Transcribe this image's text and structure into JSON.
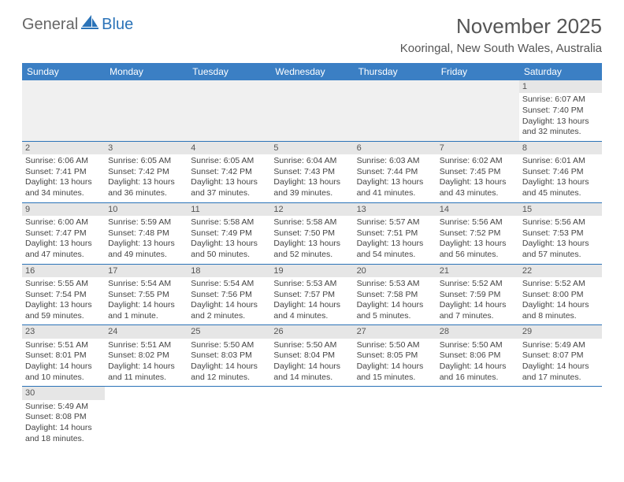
{
  "logo": {
    "general": "General",
    "blue": "Blue"
  },
  "title": "November 2025",
  "location": "Kooringal, New South Wales, Australia",
  "colors": {
    "header_bg": "#3b7fc4",
    "header_text": "#ffffff",
    "daynum_bg": "#e6e6e6",
    "cell_border": "#2b73b8",
    "logo_blue": "#2b73b8",
    "body_text": "#444444"
  },
  "weekdays": [
    "Sunday",
    "Monday",
    "Tuesday",
    "Wednesday",
    "Thursday",
    "Friday",
    "Saturday"
  ],
  "weeks": [
    [
      null,
      null,
      null,
      null,
      null,
      null,
      {
        "n": 1,
        "r": "6:07 AM",
        "s": "7:40 PM",
        "d": "13 hours and 32 minutes."
      }
    ],
    [
      {
        "n": 2,
        "r": "6:06 AM",
        "s": "7:41 PM",
        "d": "13 hours and 34 minutes."
      },
      {
        "n": 3,
        "r": "6:05 AM",
        "s": "7:42 PM",
        "d": "13 hours and 36 minutes."
      },
      {
        "n": 4,
        "r": "6:05 AM",
        "s": "7:42 PM",
        "d": "13 hours and 37 minutes."
      },
      {
        "n": 5,
        "r": "6:04 AM",
        "s": "7:43 PM",
        "d": "13 hours and 39 minutes."
      },
      {
        "n": 6,
        "r": "6:03 AM",
        "s": "7:44 PM",
        "d": "13 hours and 41 minutes."
      },
      {
        "n": 7,
        "r": "6:02 AM",
        "s": "7:45 PM",
        "d": "13 hours and 43 minutes."
      },
      {
        "n": 8,
        "r": "6:01 AM",
        "s": "7:46 PM",
        "d": "13 hours and 45 minutes."
      }
    ],
    [
      {
        "n": 9,
        "r": "6:00 AM",
        "s": "7:47 PM",
        "d": "13 hours and 47 minutes."
      },
      {
        "n": 10,
        "r": "5:59 AM",
        "s": "7:48 PM",
        "d": "13 hours and 49 minutes."
      },
      {
        "n": 11,
        "r": "5:58 AM",
        "s": "7:49 PM",
        "d": "13 hours and 50 minutes."
      },
      {
        "n": 12,
        "r": "5:58 AM",
        "s": "7:50 PM",
        "d": "13 hours and 52 minutes."
      },
      {
        "n": 13,
        "r": "5:57 AM",
        "s": "7:51 PM",
        "d": "13 hours and 54 minutes."
      },
      {
        "n": 14,
        "r": "5:56 AM",
        "s": "7:52 PM",
        "d": "13 hours and 56 minutes."
      },
      {
        "n": 15,
        "r": "5:56 AM",
        "s": "7:53 PM",
        "d": "13 hours and 57 minutes."
      }
    ],
    [
      {
        "n": 16,
        "r": "5:55 AM",
        "s": "7:54 PM",
        "d": "13 hours and 59 minutes."
      },
      {
        "n": 17,
        "r": "5:54 AM",
        "s": "7:55 PM",
        "d": "14 hours and 1 minute."
      },
      {
        "n": 18,
        "r": "5:54 AM",
        "s": "7:56 PM",
        "d": "14 hours and 2 minutes."
      },
      {
        "n": 19,
        "r": "5:53 AM",
        "s": "7:57 PM",
        "d": "14 hours and 4 minutes."
      },
      {
        "n": 20,
        "r": "5:53 AM",
        "s": "7:58 PM",
        "d": "14 hours and 5 minutes."
      },
      {
        "n": 21,
        "r": "5:52 AM",
        "s": "7:59 PM",
        "d": "14 hours and 7 minutes."
      },
      {
        "n": 22,
        "r": "5:52 AM",
        "s": "8:00 PM",
        "d": "14 hours and 8 minutes."
      }
    ],
    [
      {
        "n": 23,
        "r": "5:51 AM",
        "s": "8:01 PM",
        "d": "14 hours and 10 minutes."
      },
      {
        "n": 24,
        "r": "5:51 AM",
        "s": "8:02 PM",
        "d": "14 hours and 11 minutes."
      },
      {
        "n": 25,
        "r": "5:50 AM",
        "s": "8:03 PM",
        "d": "14 hours and 12 minutes."
      },
      {
        "n": 26,
        "r": "5:50 AM",
        "s": "8:04 PM",
        "d": "14 hours and 14 minutes."
      },
      {
        "n": 27,
        "r": "5:50 AM",
        "s": "8:05 PM",
        "d": "14 hours and 15 minutes."
      },
      {
        "n": 28,
        "r": "5:50 AM",
        "s": "8:06 PM",
        "d": "14 hours and 16 minutes."
      },
      {
        "n": 29,
        "r": "5:49 AM",
        "s": "8:07 PM",
        "d": "14 hours and 17 minutes."
      }
    ],
    [
      {
        "n": 30,
        "r": "5:49 AM",
        "s": "8:08 PM",
        "d": "14 hours and 18 minutes."
      },
      null,
      null,
      null,
      null,
      null,
      null
    ]
  ],
  "labels": {
    "sunrise": "Sunrise:",
    "sunset": "Sunset:",
    "daylight": "Daylight:"
  }
}
